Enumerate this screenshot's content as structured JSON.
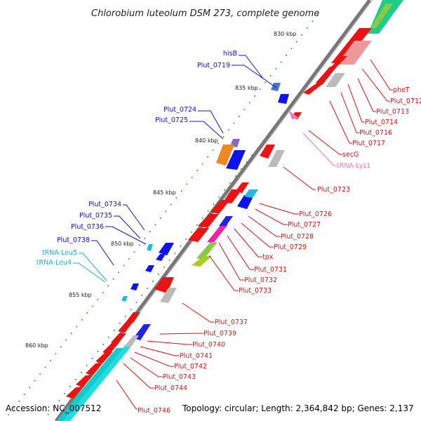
{
  "title": "Chlorobium luteolum DSM 273, complete genome",
  "footer": {
    "accession": "Accession: NC_007512",
    "stats": "Topology: circular; Length: 2,364,842 bp; Genes: 2,137"
  },
  "ticks": [
    "830 kbp",
    "835 kbp",
    "840 kbp",
    "845 kbp",
    "850 kbp",
    "855 kbp",
    "860 kbp"
  ],
  "colors": {
    "cds_forward": "#ee1111",
    "cds_reverse": "#1111ee",
    "trna": "#33bbdd",
    "trna_lys": "#ee77bb",
    "cog_grey": "#bbbbbb",
    "backbone": "#888888"
  },
  "labels_left": [
    {
      "text": "hisB",
      "color": "#1010d0"
    },
    {
      "text": "Plut_0719",
      "color": "#1010d0"
    },
    {
      "text": "Plut_0724",
      "color": "#1010d0"
    },
    {
      "text": "Plut_0725",
      "color": "#1010d0"
    },
    {
      "text": "Plut_0734",
      "color": "#1010d0"
    },
    {
      "text": "Plut_0735",
      "color": "#1010d0"
    },
    {
      "text": "Plut_0736",
      "color": "#1010d0"
    },
    {
      "text": "Plut_0738",
      "color": "#1010d0"
    },
    {
      "text": "tRNA-Leu5",
      "color": "#22aacc"
    },
    {
      "text": "tRNA-Leu4",
      "color": "#22aacc"
    }
  ],
  "labels_right": [
    {
      "text": "pheT",
      "color": "#dd1111"
    },
    {
      "text": "Plut_0712",
      "color": "#dd1111"
    },
    {
      "text": "Plut_0713",
      "color": "#dd1111"
    },
    {
      "text": "Plut_0714",
      "color": "#dd1111"
    },
    {
      "text": "Plut_0716",
      "color": "#dd1111"
    },
    {
      "text": "Plut_0717",
      "color": "#dd1111"
    },
    {
      "text": "secG",
      "color": "#dd1111"
    },
    {
      "text": "tRNA-Lys1",
      "color": "#ee77bb"
    },
    {
      "text": "Plut_0723",
      "color": "#dd1111"
    },
    {
      "text": "Plut_0726",
      "color": "#dd1111"
    },
    {
      "text": "Plut_0727",
      "color": "#dd1111"
    },
    {
      "text": "Plut_0728",
      "color": "#dd1111"
    },
    {
      "text": "Plut_0729",
      "color": "#dd1111"
    },
    {
      "text": "tpx",
      "color": "#dd1111"
    },
    {
      "text": "Plut_0731",
      "color": "#dd1111"
    },
    {
      "text": "Plut_0732",
      "color": "#dd1111"
    },
    {
      "text": "Plut_0733",
      "color": "#dd1111"
    },
    {
      "text": "Plut_0737",
      "color": "#dd1111"
    },
    {
      "text": "Plut_0739",
      "color": "#dd1111"
    },
    {
      "text": "Plut_0740",
      "color": "#dd1111"
    },
    {
      "text": "Plut_0741",
      "color": "#dd1111"
    },
    {
      "text": "Plut_0742",
      "color": "#dd1111"
    },
    {
      "text": "Plut_0743",
      "color": "#dd1111"
    },
    {
      "text": "Plut_0744",
      "color": "#dd1111"
    },
    {
      "text": "Plut_0746",
      "color": "#dd1111"
    }
  ]
}
